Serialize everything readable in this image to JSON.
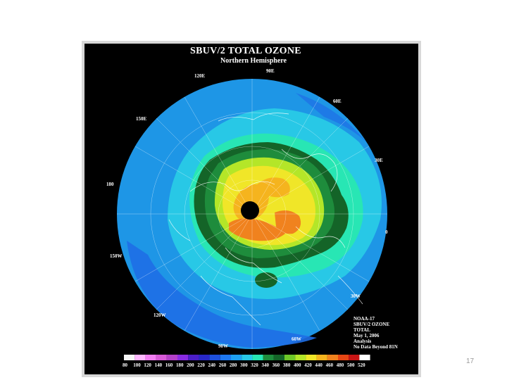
{
  "figure": {
    "title": "SBUV/2 TOTAL OZONE",
    "subtitle": "Northern Hemisphere"
  },
  "longitude_labels": [
    "90E",
    "120E",
    "60E",
    "150E",
    "30E",
    "180",
    "0",
    "150W",
    "30W",
    "120W",
    "60W",
    "90W"
  ],
  "info": {
    "lines": [
      "NOAA-17",
      "SBUV/2 OZONE",
      "TOTAL",
      "May 1, 2006",
      "Analysis",
      "No Data Beyond 81N"
    ]
  },
  "color_scale": {
    "labels": [
      "80",
      "100",
      "120",
      "140",
      "160",
      "180",
      "200",
      "220",
      "240",
      "260",
      "280",
      "300",
      "320",
      "340",
      "360",
      "380",
      "400",
      "420",
      "440",
      "460",
      "480",
      "500",
      "520"
    ],
    "colors": [
      "#f5f5f5",
      "#ffb8ff",
      "#f27ef2",
      "#d85ad8",
      "#b440c8",
      "#8a2be2",
      "#4b1ec8",
      "#2828c8",
      "#1e50dc",
      "#1e78f0",
      "#1ea0f0",
      "#28c8e6",
      "#28e6b4",
      "#1e8c3c",
      "#146428",
      "#6ec828",
      "#b4e628",
      "#f0e628",
      "#f5b41e",
      "#f0821e",
      "#e64614",
      "#c81414",
      "#ffffff"
    ]
  },
  "map_colors": {
    "outer_blue": "#1e6ee6",
    "mid_blue": "#1e96e6",
    "cyan": "#28c8e6",
    "aqua": "#28e6b4",
    "green": "#1e8c3c",
    "dark_green": "#146428",
    "yellow_green": "#b4e628",
    "yellow": "#f0e628",
    "orange": "#f5961e",
    "pole_black": "#000000"
  },
  "page": {
    "slide_number": "17"
  }
}
